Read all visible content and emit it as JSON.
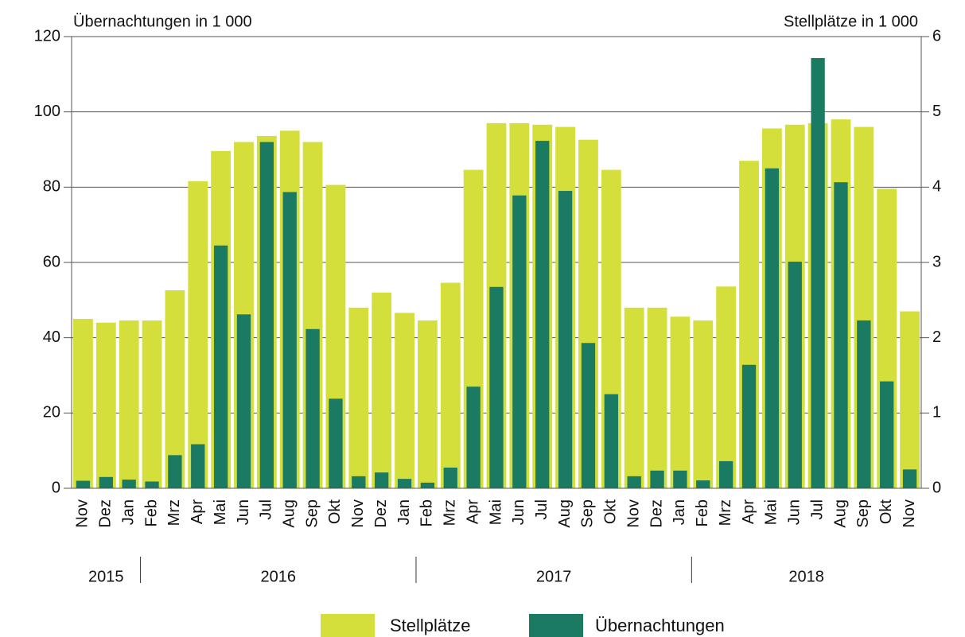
{
  "chart_data": {
    "type": "bar",
    "y_label": "Übernachtungen in 1 000",
    "y2_label": "Stellplätze in 1 000",
    "categories": [
      "Nov",
      "Dez",
      "Jan",
      "Feb",
      "Mrz",
      "Apr",
      "Mai",
      "Jun",
      "Jul",
      "Aug",
      "Sep",
      "Okt",
      "Nov",
      "Dez",
      "Jan",
      "Feb",
      "Mrz",
      "Apr",
      "Mai",
      "Jun",
      "Jul",
      "Aug",
      "Sep",
      "Okt",
      "Nov",
      "Dez",
      "Jan",
      "Feb",
      "Mrz",
      "Apr",
      "Mai",
      "Jun",
      "Jul",
      "Aug",
      "Sep",
      "Okt",
      "Nov"
    ],
    "year_groups": [
      {
        "label": "2015",
        "count": 3
      },
      {
        "label": "2016",
        "count": 12
      },
      {
        "label": "2017",
        "count": 12
      },
      {
        "label": "2018",
        "count": 10
      }
    ],
    "series": [
      {
        "name": "Stellplätze",
        "color": "#d5df3c",
        "axis": "y2",
        "values": [
          2.25,
          2.2,
          2.23,
          2.23,
          2.63,
          4.08,
          4.48,
          4.6,
          4.68,
          4.75,
          4.6,
          4.03,
          2.4,
          2.6,
          2.33,
          2.23,
          2.73,
          4.23,
          4.85,
          4.85,
          4.83,
          4.8,
          4.63,
          4.23,
          2.4,
          2.4,
          2.28,
          2.23,
          2.68,
          4.35,
          4.78,
          4.83,
          4.85,
          4.9,
          4.8,
          3.98,
          2.35
        ]
      },
      {
        "name": "Übernachtungen",
        "color": "#1b7a62",
        "axis": "y",
        "values": [
          2,
          3,
          2.3,
          1.8,
          8.8,
          11.7,
          64.5,
          46.2,
          92,
          78.7,
          42.3,
          23.8,
          3.2,
          4.2,
          2.5,
          1.5,
          5.5,
          27,
          53.5,
          77.8,
          92.3,
          79,
          38.6,
          25,
          3.2,
          4.7,
          4.7,
          2.1,
          7.2,
          32.8,
          85,
          60.2,
          114.3,
          81.3,
          44.6,
          28.4,
          5
        ]
      }
    ],
    "ylim": [
      0,
      120
    ],
    "yticks": [
      0,
      20,
      40,
      60,
      80,
      100,
      120
    ],
    "y2lim": [
      0,
      6
    ],
    "y2ticks": [
      0,
      1,
      2,
      3,
      4,
      5,
      6
    ],
    "grid": true
  }
}
